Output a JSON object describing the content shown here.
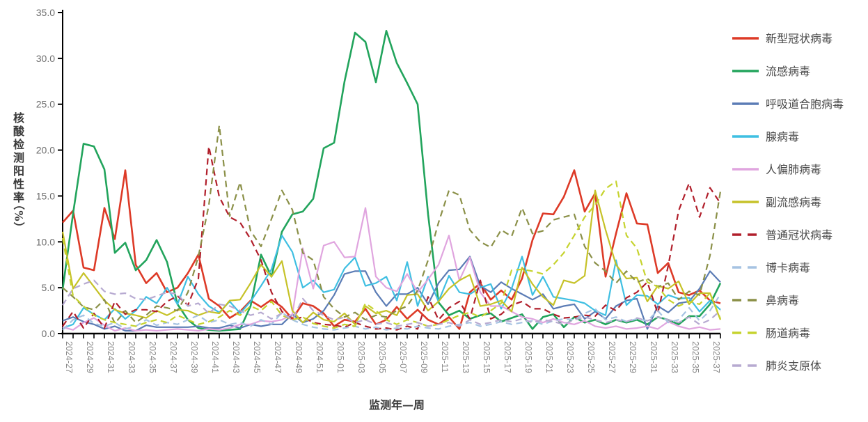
{
  "y_axis": {
    "title": "核酸检测阳性率",
    "unit": "（%）",
    "min": 0,
    "max": 35,
    "step": 5
  },
  "x_axis": {
    "title": "监测年—周",
    "label_every": 2
  },
  "chart_data": {
    "type": "line",
    "grid": false,
    "legend_position": "right",
    "ylim": [
      0,
      35
    ],
    "ylabel": "核酸检测阳性率（%）",
    "xlabel": "监测年—周",
    "x": [
      "2024-27",
      "2024-28",
      "2024-29",
      "2024-30",
      "2024-31",
      "2024-32",
      "2024-33",
      "2024-34",
      "2024-35",
      "2024-36",
      "2024-37",
      "2024-38",
      "2024-39",
      "2024-40",
      "2024-41",
      "2024-42",
      "2024-43",
      "2024-44",
      "2024-45",
      "2024-46",
      "2024-47",
      "2024-48",
      "2024-49",
      "2024-50",
      "2024-51",
      "2024-52",
      "2025-01",
      "2025-02",
      "2025-03",
      "2025-04",
      "2025-05",
      "2025-06",
      "2025-07",
      "2025-08",
      "2025-09",
      "2025-10",
      "2025-11",
      "2025-12",
      "2025-13",
      "2025-14",
      "2025-15",
      "2025-16",
      "2025-17",
      "2025-18",
      "2025-19",
      "2025-20",
      "2025-21",
      "2025-22",
      "2025-23",
      "2025-24",
      "2025-25",
      "2025-26",
      "2025-27",
      "2025-28",
      "2025-29",
      "2025-30",
      "2025-31",
      "2025-32",
      "2025-33",
      "2025-34",
      "2025-35",
      "2025-36",
      "2025-37",
      "2025-38"
    ],
    "series": [
      {
        "name": "新型冠状病毒",
        "color": "#dd3a27",
        "dash": false,
        "width": 2.6,
        "values": [
          12.1,
          13.4,
          7.2,
          6.9,
          13.7,
          10.3,
          17.8,
          7.5,
          5.5,
          6.6,
          4.5,
          5.0,
          6.6,
          8.6,
          3.8,
          3.0,
          1.7,
          2.4,
          3.6,
          2.9,
          3.7,
          2.9,
          1.6,
          3.3,
          3.0,
          2.2,
          0.8,
          1.5,
          1.3,
          2.7,
          1.0,
          1.5,
          2.9,
          1.6,
          2.6,
          1.5,
          1.0,
          1.8,
          0.5,
          4.5,
          5.5,
          3.7,
          4.7,
          3.7,
          6.0,
          10.2,
          13.1,
          13.0,
          14.9,
          17.8,
          13.3,
          15.3,
          6.2,
          10.9,
          15.3,
          12.0,
          11.9,
          6.6,
          7.7,
          4.5,
          4.2,
          4.7,
          3.6,
          3.3
        ]
      },
      {
        "name": "流感病毒",
        "color": "#22a45c",
        "dash": false,
        "width": 2.6,
        "values": [
          4.8,
          13.1,
          20.7,
          20.4,
          17.9,
          8.8,
          9.9,
          6.9,
          8.0,
          10.2,
          7.8,
          3.2,
          1.5,
          0.6,
          0.4,
          0.3,
          0.4,
          0.5,
          3.0,
          8.6,
          6.2,
          11.1,
          13.0,
          13.3,
          14.7,
          20.2,
          20.8,
          27.5,
          32.8,
          31.8,
          27.4,
          33.0,
          29.5,
          27.3,
          25.0,
          13.0,
          3.4,
          2.0,
          2.5,
          1.6,
          2.0,
          2.2,
          1.3,
          1.7,
          2.1,
          0.5,
          1.8,
          2.1,
          0.7,
          1.8,
          1.2,
          1.5,
          1.0,
          1.5,
          1.2,
          1.5,
          1.0,
          1.8,
          1.5,
          1.0,
          1.9,
          1.9,
          3.2,
          5.5
        ]
      },
      {
        "name": "呼吸道合胞病毒",
        "color": "#5b7cb5",
        "dash": false,
        "width": 2.2,
        "values": [
          1.4,
          1.8,
          1.3,
          1.0,
          0.5,
          0.8,
          0.3,
          0.3,
          0.9,
          0.7,
          0.7,
          0.7,
          0.7,
          0.8,
          0.6,
          0.6,
          0.9,
          0.6,
          1.0,
          0.8,
          1.0,
          1.0,
          2.1,
          1.2,
          1.6,
          2.5,
          4.2,
          6.5,
          6.8,
          6.8,
          4.5,
          3.0,
          4.3,
          4.3,
          5.0,
          3.2,
          5.5,
          6.9,
          7.0,
          8.4,
          5.2,
          4.5,
          5.6,
          4.9,
          4.3,
          3.7,
          4.3,
          2.7,
          3.0,
          3.2,
          1.6,
          2.4,
          1.6,
          3.0,
          3.6,
          3.8,
          0.5,
          3.0,
          2.3,
          3.3,
          3.5,
          4.9,
          6.8,
          5.6
        ]
      },
      {
        "name": "腺病毒",
        "color": "#3fbfe2",
        "dash": false,
        "width": 2.2,
        "values": [
          0.6,
          1.0,
          2.8,
          2.1,
          1.5,
          2.7,
          1.6,
          2.5,
          4.0,
          3.3,
          5.0,
          3.2,
          6.2,
          4.3,
          3.0,
          2.3,
          3.5,
          2.2,
          3.5,
          5.2,
          7.0,
          10.7,
          8.9,
          5.0,
          5.8,
          4.5,
          4.8,
          7.1,
          8.3,
          5.2,
          5.5,
          6.2,
          3.6,
          7.8,
          3.0,
          6.2,
          3.5,
          6.3,
          4.5,
          4.3,
          5.0,
          5.4,
          2.7,
          4.9,
          8.4,
          4.2,
          6.2,
          4.0,
          3.8,
          3.6,
          3.3,
          2.5,
          2.0,
          8.0,
          3.1,
          4.2,
          4.1,
          3.2,
          4.2,
          3.8,
          3.9,
          2.4,
          3.6,
          2.6
        ]
      },
      {
        "name": "人偏肺病毒",
        "color": "#e0a5df",
        "dash": false,
        "width": 2.2,
        "values": [
          0.7,
          0.4,
          1.2,
          1.7,
          0.9,
          0.3,
          0.6,
          0.3,
          0.4,
          0.3,
          0.4,
          0.5,
          0.4,
          0.3,
          0.5,
          0.4,
          0.6,
          1.0,
          1.0,
          1.4,
          1.3,
          1.5,
          2.1,
          9.3,
          4.9,
          9.6,
          10.0,
          8.3,
          8.4,
          13.7,
          6.2,
          5.0,
          4.6,
          6.5,
          4.5,
          5.9,
          7.5,
          10.7,
          5.8,
          8.3,
          4.5,
          3.0,
          3.0,
          2.4,
          1.8,
          1.6,
          1.2,
          1.6,
          1.2,
          1.0,
          1.4,
          0.8,
          0.6,
          0.8,
          0.5,
          0.6,
          0.8,
          0.5,
          1.3,
          0.8,
          0.5,
          0.7,
          0.4,
          0.5
        ]
      },
      {
        "name": "副流感病毒",
        "color": "#c6c228",
        "dash": false,
        "width": 2.2,
        "values": [
          11.1,
          4.9,
          6.6,
          5.1,
          3.6,
          2.6,
          2.2,
          2.0,
          1.7,
          2.5,
          2.0,
          2.6,
          2.5,
          2.0,
          2.4,
          2.2,
          3.6,
          3.7,
          5.5,
          7.5,
          6.2,
          7.9,
          2.5,
          1.2,
          2.3,
          1.5,
          1.3,
          2.2,
          1.0,
          3.0,
          2.2,
          2.5,
          2.0,
          4.2,
          4.3,
          2.5,
          3.5,
          4.9,
          5.8,
          6.4,
          3.0,
          3.2,
          3.6,
          2.4,
          7.2,
          5.4,
          4.0,
          3.1,
          5.8,
          5.5,
          6.3,
          15.6,
          11.3,
          7.5,
          6.0,
          6.1,
          3.5,
          5.2,
          4.9,
          5.7,
          3.2,
          4.4,
          4.4,
          1.5
        ]
      },
      {
        "name": "普通冠状病毒",
        "color": "#b11f2b",
        "dash": true,
        "width": 2.2,
        "values": [
          0.8,
          2.4,
          0.6,
          2.2,
          0.6,
          3.5,
          2.1,
          2.6,
          2.6,
          2.4,
          3.5,
          4.1,
          3.1,
          6.0,
          20.4,
          14.9,
          12.7,
          12.1,
          10.3,
          8.0,
          4.5,
          2.4,
          1.5,
          1.8,
          1.2,
          1.0,
          0.9,
          0.7,
          1.2,
          0.8,
          0.5,
          0.6,
          0.4,
          0.8,
          0.5,
          4.0,
          1.5,
          2.8,
          3.5,
          1.6,
          5.8,
          1.6,
          2.1,
          3.1,
          3.5,
          2.7,
          2.7,
          2.1,
          1.7,
          1.8,
          2.0,
          1.9,
          3.1,
          2.5,
          3.9,
          4.5,
          5.6,
          2.2,
          7.4,
          13.4,
          16.4,
          12.7,
          15.9,
          14.2
        ]
      },
      {
        "name": "博卡病毒",
        "color": "#a6c3e2",
        "dash": true,
        "width": 2.2,
        "values": [
          0.4,
          1.5,
          2.0,
          1.1,
          0.8,
          1.2,
          0.5,
          0.8,
          1.5,
          0.9,
          1.2,
          1.0,
          1.5,
          2.0,
          1.2,
          1.5,
          1.0,
          1.2,
          0.8,
          1.5,
          1.0,
          2.3,
          1.5,
          1.0,
          0.7,
          0.5,
          0.4,
          0.6,
          0.8,
          0.5,
          0.7,
          0.4,
          0.6,
          0.5,
          0.8,
          0.6,
          0.5,
          0.8,
          1.0,
          1.2,
          0.8,
          1.0,
          1.3,
          1.0,
          1.2,
          1.4,
          1.0,
          1.4,
          1.6,
          1.5,
          2.2,
          2.7,
          1.5,
          1.8,
          1.3,
          1.6,
          1.4,
          2.5,
          1.2,
          1.5,
          2.8,
          1.4,
          2.5,
          4.3
        ]
      },
      {
        "name": "鼻病毒",
        "color": "#8b9048",
        "dash": true,
        "width": 2.2,
        "values": [
          5.0,
          4.0,
          2.9,
          2.6,
          3.7,
          1.1,
          2.5,
          1.2,
          2.0,
          3.0,
          2.8,
          2.5,
          4.5,
          8.4,
          14.0,
          22.7,
          12.8,
          16.5,
          11.2,
          9.5,
          12.5,
          15.6,
          13.5,
          8.8,
          8.0,
          4.0,
          2.7,
          1.8,
          2.3,
          1.5,
          2.0,
          1.8,
          2.5,
          3.0,
          4.7,
          8.0,
          12.1,
          15.6,
          15.1,
          11.3,
          10.0,
          9.4,
          11.3,
          10.6,
          13.7,
          10.9,
          11.2,
          12.4,
          12.7,
          13.0,
          9.5,
          7.7,
          6.8,
          5.5,
          6.8,
          5.6,
          6.0,
          5.1,
          5.5,
          3.7,
          4.6,
          4.2,
          8.5,
          15.5
        ]
      },
      {
        "name": "肠道病毒",
        "color": "#c6d32f",
        "dash": true,
        "width": 2.2,
        "values": [
          10.4,
          4.1,
          3.0,
          2.0,
          1.5,
          1.2,
          1.0,
          0.8,
          1.2,
          1.5,
          1.2,
          2.0,
          1.5,
          1.0,
          1.3,
          1.8,
          2.5,
          2.0,
          3.0,
          2.5,
          3.5,
          2.0,
          1.5,
          1.8,
          1.1,
          0.8,
          0.6,
          1.0,
          0.8,
          3.3,
          2.5,
          1.5,
          1.0,
          1.5,
          1.2,
          0.8,
          1.0,
          1.5,
          2.0,
          2.3,
          1.8,
          2.5,
          3.3,
          6.9,
          7.0,
          6.8,
          6.5,
          7.5,
          8.8,
          10.7,
          12.7,
          14.0,
          15.8,
          16.6,
          10.7,
          9.3,
          5.6,
          5.1,
          3.7,
          3.0,
          3.5,
          3.2,
          4.4,
          1.6
        ]
      },
      {
        "name": "肺炎支原体",
        "color": "#b7aad1",
        "dash": true,
        "width": 2.2,
        "values": [
          3.1,
          4.9,
          5.4,
          5.8,
          4.6,
          4.3,
          4.4,
          3.8,
          3.7,
          4.1,
          4.5,
          4.3,
          3.0,
          3.3,
          2.2,
          3.2,
          3.0,
          2.5,
          2.0,
          2.3,
          1.6,
          2.2,
          1.5,
          3.8,
          2.5,
          2.0,
          1.5,
          1.8,
          1.2,
          1.5,
          1.0,
          1.2,
          0.8,
          1.0,
          1.2,
          0.8,
          1.0,
          1.2,
          0.8,
          1.5,
          1.0,
          1.2,
          1.5,
          1.3,
          1.6,
          1.2,
          1.5,
          1.3,
          1.0,
          1.5,
          1.8,
          1.5,
          1.2,
          1.5,
          1.3,
          1.7,
          1.4,
          1.8,
          1.5,
          1.2,
          1.8,
          1.0,
          1.5,
          2.5
        ]
      }
    ]
  }
}
